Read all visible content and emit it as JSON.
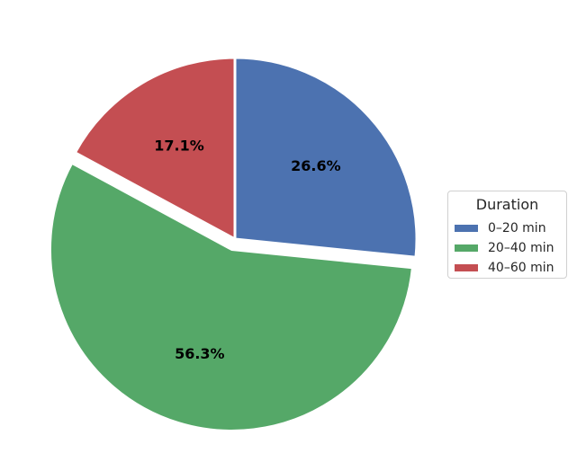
{
  "chart_data": {
    "type": "pie",
    "title": "",
    "legend": {
      "title": "Duration",
      "placement": "right"
    },
    "categories": [
      "0–20 min",
      "20–40 min",
      "40–60 min"
    ],
    "values": [
      26.6,
      56.3,
      17.1
    ],
    "labels": [
      "26.6%",
      "56.3%",
      "17.1%"
    ],
    "colors": [
      "#4c72b0",
      "#55a868",
      "#c44e52"
    ],
    "exploded": [
      false,
      true,
      false
    ],
    "start": "top",
    "direction": "clockwise"
  }
}
